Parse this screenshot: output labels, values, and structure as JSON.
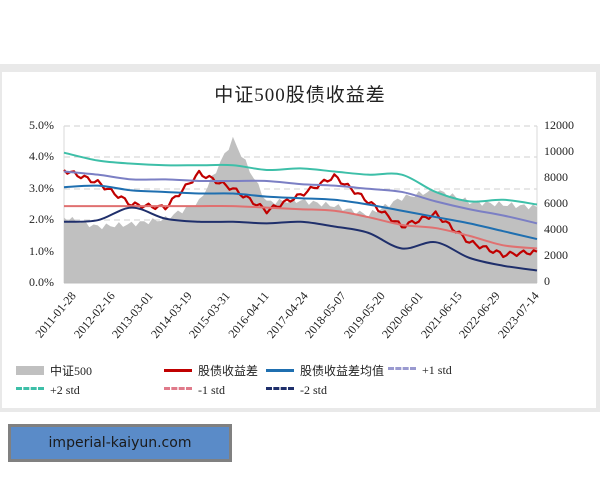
{
  "banner": {
    "text": "imperial-kaiyun.com",
    "bg": "#5a8bc8"
  },
  "chart_data": {
    "type": "line",
    "title": "中证500股债收益差",
    "xlabel": "",
    "ylabel_left": "",
    "ylabel_right": "",
    "left_axis": {
      "ticks": [
        "0.0%",
        "1.0%",
        "2.0%",
        "3.0%",
        "4.0%",
        "5.0%"
      ],
      "ylim": [
        0,
        5.0
      ],
      "unit": "%"
    },
    "right_axis": {
      "ticks": [
        "0",
        "2000",
        "4000",
        "6000",
        "8000",
        "10000",
        "12000"
      ],
      "ylim": [
        0,
        12000
      ]
    },
    "grid": "horizontal dashed",
    "legend_position": "bottom",
    "x_tick_labels": [
      "2011-01-28",
      "2012-02-16",
      "2013-03-01",
      "2014-03-19",
      "2015-03-31",
      "2016-04-11",
      "2017-04-24",
      "2018-05-07",
      "2019-05-20",
      "2020-06-01",
      "2021-06-15",
      "2022-06-29",
      "2023-07-14"
    ],
    "x": [
      "2011-01",
      "2012-02",
      "2013-03",
      "2014-03",
      "2015-03",
      "2015-06",
      "2016-04",
      "2017-04",
      "2018-05",
      "2019-05",
      "2020-06",
      "2021-06",
      "2022-06",
      "2023-07",
      "2023-12"
    ],
    "series": [
      {
        "name": "中证500",
        "axis": "right",
        "style": "area",
        "color": "#c0c0c0",
        "values": [
          5000,
          4300,
          4500,
          4900,
          6200,
          11000,
          6200,
          6300,
          5900,
          5200,
          6500,
          7100,
          6200,
          6000,
          5800
        ]
      },
      {
        "name": "股债收益差",
        "axis": "left",
        "style": "solid",
        "color": "#c00000",
        "values": [
          3.6,
          3.2,
          2.5,
          2.4,
          3.5,
          3.0,
          2.3,
          2.8,
          3.4,
          2.6,
          1.8,
          2.2,
          1.3,
          0.9,
          1.0
        ]
      },
      {
        "name": "股债收益差均值",
        "axis": "left",
        "style": "solid",
        "color": "#1f6fb0",
        "values": [
          3.05,
          3.1,
          2.95,
          2.9,
          2.85,
          2.85,
          2.75,
          2.7,
          2.65,
          2.5,
          2.3,
          2.1,
          1.9,
          1.65,
          1.4
        ]
      },
      {
        "name": "+1 std",
        "axis": "left",
        "style": "dash",
        "color": "#7b7fc4",
        "values": [
          3.55,
          3.45,
          3.3,
          3.3,
          3.25,
          3.25,
          3.25,
          3.15,
          3.1,
          3.0,
          2.9,
          2.6,
          2.35,
          2.15,
          1.9
        ]
      },
      {
        "name": "+2 std",
        "axis": "left",
        "style": "dash",
        "color": "#3dbfa8",
        "values": [
          4.15,
          3.9,
          3.8,
          3.75,
          3.75,
          3.75,
          3.6,
          3.65,
          3.55,
          3.45,
          3.45,
          2.9,
          2.6,
          2.65,
          2.5
        ]
      },
      {
        "name": "-1 std",
        "axis": "left",
        "style": "dash",
        "color": "#e07070",
        "values": [
          2.45,
          2.45,
          2.45,
          2.45,
          2.45,
          2.45,
          2.4,
          2.35,
          2.3,
          2.1,
          1.85,
          1.75,
          1.5,
          1.2,
          1.1
        ]
      },
      {
        "name": "-2 std",
        "axis": "left",
        "style": "dash",
        "color": "#1f2f6b",
        "values": [
          1.95,
          2.0,
          2.4,
          2.05,
          1.95,
          1.95,
          1.9,
          1.95,
          1.8,
          1.6,
          1.1,
          1.3,
          0.8,
          0.55,
          0.4
        ]
      }
    ]
  },
  "legend": [
    {
      "label": "中证500",
      "style": "area",
      "color": "#c0c0c0"
    },
    {
      "label": "股债收益差",
      "style": "solid",
      "color": "#c00000"
    },
    {
      "label": "股债收益差均值",
      "style": "solid",
      "color": "#1f6fb0"
    },
    {
      "label": "+1 std",
      "style": "dash",
      "color": "#9a9ad0"
    },
    {
      "label": "+2 std",
      "style": "dash",
      "color": "#3dbfa8"
    },
    {
      "label": "-1 std",
      "style": "dash",
      "color": "#e07a8a"
    },
    {
      "label": "-2 std",
      "style": "dash",
      "color": "#1f2f6b"
    }
  ]
}
